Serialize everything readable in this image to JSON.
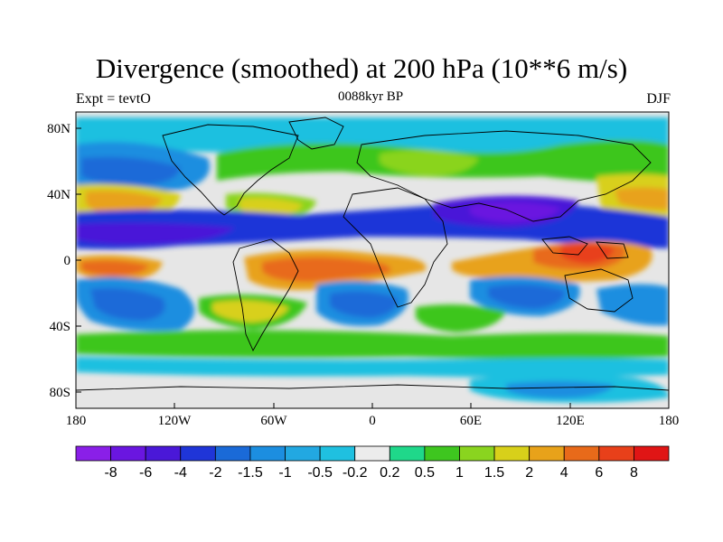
{
  "title": "Divergence (smoothed) at 200 hPa (10**6 m/s)",
  "subtitle_left": "Expt = tevtO",
  "subtitle_center": "0088kyr BP",
  "subtitle_right": "DJF",
  "map": {
    "type": "filled-contour world map",
    "projection": "cylindrical equidistant",
    "lon_range": [
      -180,
      180
    ],
    "lat_range": [
      -90,
      90
    ],
    "x_tick_labels": [
      "180",
      "120W",
      "60W",
      "0",
      "60E",
      "120E",
      "180"
    ],
    "y_tick_labels": [
      "80N",
      "40N",
      "0",
      "40S",
      "80S"
    ]
  },
  "colorbar": {
    "labels": [
      "-8",
      "-6",
      "-4",
      "-2",
      "-1.5",
      "-1",
      "-0.5",
      "-0.2",
      "0.2",
      "0.5",
      "1",
      "1.5",
      "2",
      "4",
      "6",
      "8"
    ],
    "colors": [
      "#8a1fe8",
      "#6a16e0",
      "#4a18d8",
      "#1f35d8",
      "#1a6ad8",
      "#1c8ee0",
      "#22a8e2",
      "#1fc0e0",
      "#ececec",
      "#1fd88a",
      "#3ec61f",
      "#8ad41f",
      "#d8d01a",
      "#e8a21a",
      "#e86a1a",
      "#e8401a",
      "#e01515"
    ]
  }
}
